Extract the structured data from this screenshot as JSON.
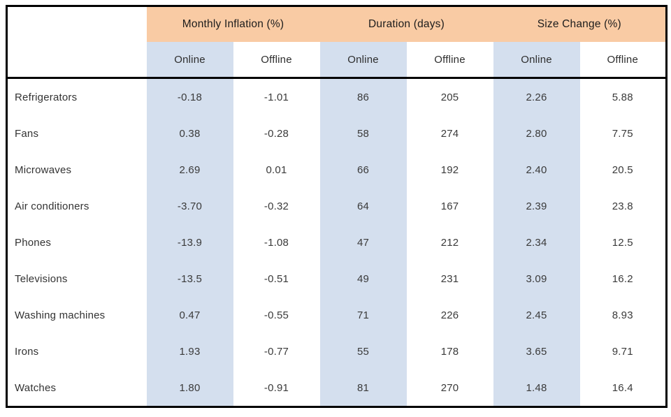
{
  "chart_data": {
    "type": "table",
    "title": "",
    "column_groups": [
      {
        "label": "Monthly Inflation (%)",
        "sub": [
          "Online",
          "Offline"
        ]
      },
      {
        "label": "Duration (days)",
        "sub": [
          "Online",
          "Offline"
        ]
      },
      {
        "label": "Size Change (%)",
        "sub": [
          "Online",
          "Offline"
        ]
      }
    ],
    "rows": [
      {
        "label": "Refrigerators",
        "values": [
          "-0.18",
          "-1.01",
          "86",
          "205",
          "2.26",
          "5.88"
        ]
      },
      {
        "label": "Fans",
        "values": [
          "0.38",
          "-0.28",
          "58",
          "274",
          "2.80",
          "7.75"
        ]
      },
      {
        "label": "Microwaves",
        "values": [
          "2.69",
          "0.01",
          "66",
          "192",
          "2.40",
          "20.5"
        ]
      },
      {
        "label": "Air conditioners",
        "values": [
          "-3.70",
          "-0.32",
          "64",
          "167",
          "2.39",
          "23.8"
        ]
      },
      {
        "label": "Phones",
        "values": [
          "-13.9",
          "-1.08",
          "47",
          "212",
          "2.34",
          "12.5"
        ]
      },
      {
        "label": "Televisions",
        "values": [
          "-13.5",
          "-0.51",
          "49",
          "231",
          "3.09",
          "16.2"
        ]
      },
      {
        "label": "Washing machines",
        "values": [
          "0.47",
          "-0.55",
          "71",
          "226",
          "2.45",
          "8.93"
        ]
      },
      {
        "label": "Irons",
        "values": [
          "1.93",
          "-0.77",
          "55",
          "178",
          "3.65",
          "9.71"
        ]
      },
      {
        "label": "Watches",
        "values": [
          "1.80",
          "-0.91",
          "81",
          "270",
          "1.48",
          "16.4"
        ]
      }
    ],
    "layout": {
      "online_columns_shaded": true,
      "grid": "outer border and header separator only"
    }
  },
  "colors": {
    "group_header_bg": "#F9CBA4",
    "online_column_bg": "#D4DFEE",
    "border": "#000000",
    "text": "#333333"
  }
}
